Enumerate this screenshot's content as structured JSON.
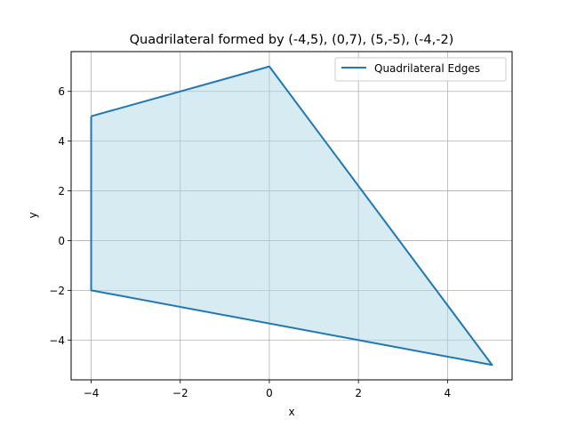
{
  "chart_data": {
    "type": "line",
    "title": "Quadrilateral formed by (-4,5), (0,7), (5,-5), (-4,-2)",
    "xlabel": "x",
    "ylabel": "y",
    "xlim": [
      -4.45,
      5.45
    ],
    "ylim": [
      -5.6,
      7.6
    ],
    "xticks": [
      -4,
      -2,
      0,
      2,
      4
    ],
    "yticks": [
      -4,
      -2,
      0,
      2,
      4,
      6
    ],
    "xtick_labels": [
      "−4",
      "−2",
      "0",
      "2",
      "4"
    ],
    "ytick_labels": [
      "−4",
      "−2",
      "0",
      "2",
      "4",
      "6"
    ],
    "grid": true,
    "legend_position": "top-right",
    "series": [
      {
        "name": "Quadrilateral  Edges",
        "x": [
          -4,
          0,
          5,
          -4,
          -4
        ],
        "y": [
          5,
          7,
          -5,
          -2,
          5
        ],
        "color": "#1f77b4"
      }
    ],
    "fill": {
      "x": [
        -4,
        0,
        5,
        -4
      ],
      "y": [
        5,
        7,
        -5,
        -2
      ],
      "color": "#add8e6",
      "alpha": 0.5
    }
  }
}
